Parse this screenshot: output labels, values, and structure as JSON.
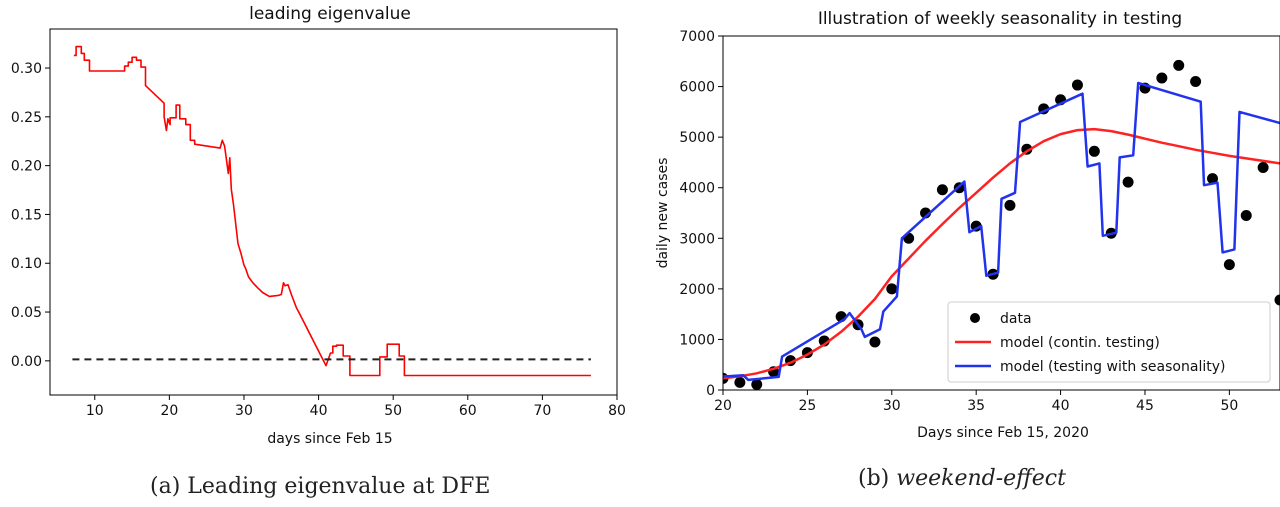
{
  "captions": {
    "a": "(a) Leading eigenvalue at DFE",
    "b_prefix": "(b)",
    "b_italic": "weekend-effect"
  },
  "chart_data": [
    {
      "type": "line",
      "title": "leading eigenvalue",
      "xlabel": "days since Feb 15",
      "ylabel": "",
      "xlim": [
        4,
        80
      ],
      "ylim": [
        -0.035,
        0.34
      ],
      "xticks": [
        10,
        20,
        30,
        40,
        50,
        60,
        70,
        80
      ],
      "yticks": [
        0.0,
        0.05,
        0.1,
        0.15,
        0.2,
        0.25,
        0.3
      ],
      "ytick_labels": [
        "0.00",
        "0.05",
        "0.10",
        "0.15",
        "0.20",
        "0.25",
        "0.30"
      ],
      "grid": false,
      "series": [
        {
          "color": "#ff0000",
          "style": "solid",
          "x": [
            7.2,
            7.5,
            7.5,
            8.2,
            8.2,
            8.6,
            8.6,
            9.3,
            9.3,
            14,
            14,
            14.5,
            14.5,
            15,
            15,
            15.6,
            15.6,
            16.2,
            16.2,
            16.8,
            16.8,
            19.3,
            19.3,
            19.6,
            19.8,
            20.1,
            20.1,
            20.9,
            20.9,
            21.4,
            21.4,
            22.2,
            22.2,
            22.8,
            22.8,
            23.4,
            23.4,
            26.8,
            27.1,
            27.4,
            27.9,
            28.1,
            28.3,
            28.6,
            29.2,
            29.6,
            30.0,
            30.2,
            30.6,
            31.2,
            31.8,
            32.5,
            33.4,
            34.6,
            35.0,
            35.3,
            35.3,
            35.5,
            35.5,
            35.9,
            35.9,
            36.4,
            36.4,
            37.0,
            38.0,
            39.0,
            40.0,
            41.0,
            41.6,
            41.9,
            41.9,
            42.4,
            42.4,
            43.3,
            43.3,
            44.2,
            44.2,
            48.2,
            48.2,
            49.2,
            49.2,
            50.8,
            50.8,
            51.5,
            51.5,
            76.5
          ],
          "y": [
            0.313,
            0.313,
            0.322,
            0.322,
            0.315,
            0.315,
            0.308,
            0.308,
            0.297,
            0.297,
            0.302,
            0.302,
            0.306,
            0.306,
            0.311,
            0.311,
            0.308,
            0.308,
            0.301,
            0.301,
            0.282,
            0.264,
            0.25,
            0.236,
            0.248,
            0.242,
            0.249,
            0.249,
            0.262,
            0.262,
            0.248,
            0.248,
            0.242,
            0.242,
            0.226,
            0.226,
            0.222,
            0.218,
            0.226,
            0.22,
            0.192,
            0.208,
            0.176,
            0.16,
            0.12,
            0.11,
            0.098,
            0.095,
            0.086,
            0.08,
            0.075,
            0.07,
            0.066,
            0.067,
            0.068,
            0.08,
            0.08,
            0.077,
            0.077,
            0.078,
            0.078,
            0.067,
            0.067,
            0.055,
            0.04,
            0.025,
            0.01,
            -0.005,
            0.008,
            0.008,
            0.015,
            0.015,
            0.016,
            0.016,
            0.005,
            0.005,
            -0.015,
            -0.015,
            0.004,
            0.004,
            0.017,
            0.017,
            0.005,
            0.005,
            -0.015,
            -0.015
          ]
        },
        {
          "color": "#222222",
          "style": "dashed",
          "x": [
            7,
            76.5
          ],
          "y": [
            0.0015,
            0.0015
          ]
        }
      ]
    },
    {
      "type": "line",
      "title": "Illustration of weekly seasonality in testing",
      "xlabel": "Days since Feb 15, 2020",
      "ylabel": "daily new cases",
      "xlim": [
        20,
        53
      ],
      "ylim": [
        0,
        7000
      ],
      "xticks": [
        20,
        25,
        30,
        35,
        40,
        45,
        50
      ],
      "yticks": [
        0,
        1000,
        2000,
        3000,
        4000,
        5000,
        6000,
        7000
      ],
      "grid": false,
      "legend": {
        "placement": "bottom-right",
        "entries": [
          {
            "label": "data",
            "kind": "marker",
            "color": "#000000"
          },
          {
            "label": "model (contin. testing)",
            "kind": "line",
            "color": "#ff2222"
          },
          {
            "label": "model (testing with seasonality)",
            "kind": "line",
            "color": "#2233ee"
          }
        ]
      },
      "series": [
        {
          "name": "data",
          "kind": "scatter",
          "color": "#000000",
          "x": [
            20,
            21,
            22,
            23,
            24,
            25,
            26,
            27,
            28,
            29,
            30,
            31,
            32,
            33,
            34,
            35,
            36,
            37,
            38,
            39,
            40,
            41,
            42,
            43,
            44,
            45,
            46,
            47,
            48,
            49,
            50,
            51,
            52,
            53
          ],
          "y": [
            230,
            150,
            110,
            360,
            580,
            740,
            970,
            1450,
            1290,
            950,
            2000,
            3000,
            3500,
            3960,
            4000,
            3240,
            2290,
            3650,
            4760,
            5560,
            5740,
            6030,
            4720,
            3100,
            4110,
            5970,
            6170,
            6420,
            6100,
            4180,
            2480,
            3450,
            4400,
            1780
          ]
        },
        {
          "name": "model (contin. testing)",
          "kind": "line",
          "color": "#ff2222",
          "x": [
            20,
            21,
            22,
            23,
            24,
            25,
            26,
            27,
            28,
            29,
            30,
            31,
            32,
            33,
            34,
            35,
            36,
            37,
            38,
            39,
            40,
            41,
            42,
            43,
            44,
            45,
            46,
            47,
            48,
            49,
            50,
            51,
            52,
            53
          ],
          "y": [
            230,
            270,
            330,
            420,
            540,
            700,
            900,
            1150,
            1450,
            1800,
            2250,
            2600,
            2950,
            3280,
            3600,
            3900,
            4200,
            4480,
            4720,
            4920,
            5060,
            5140,
            5160,
            5120,
            5050,
            4970,
            4890,
            4820,
            4750,
            4690,
            4630,
            4580,
            4530,
            4480
          ]
        },
        {
          "name": "model (testing with seasonality)",
          "kind": "line",
          "color": "#2233ee",
          "x": [
            20,
            20.3,
            21.2,
            21.5,
            23.3,
            23.5,
            27.2,
            27.5,
            28.2,
            28.4,
            29.3,
            29.5,
            30.3,
            30.6,
            34.3,
            34.6,
            35.3,
            35.6,
            36.3,
            36.5,
            37.3,
            37.6,
            41.3,
            41.6,
            42.3,
            42.5,
            43.3,
            43.5,
            44.3,
            44.6,
            48.3,
            48.5,
            49.3,
            49.6,
            50.3,
            50.6,
            53
          ],
          "y": [
            270,
            270,
            290,
            200,
            260,
            660,
            1400,
            1520,
            1200,
            1050,
            1200,
            1550,
            1850,
            3000,
            4120,
            3120,
            3240,
            2260,
            2320,
            3780,
            3900,
            5300,
            5860,
            4420,
            4480,
            3050,
            3110,
            4600,
            4640,
            6070,
            5700,
            4050,
            4100,
            2720,
            2780,
            5500,
            5280
          ]
        }
      ]
    }
  ]
}
